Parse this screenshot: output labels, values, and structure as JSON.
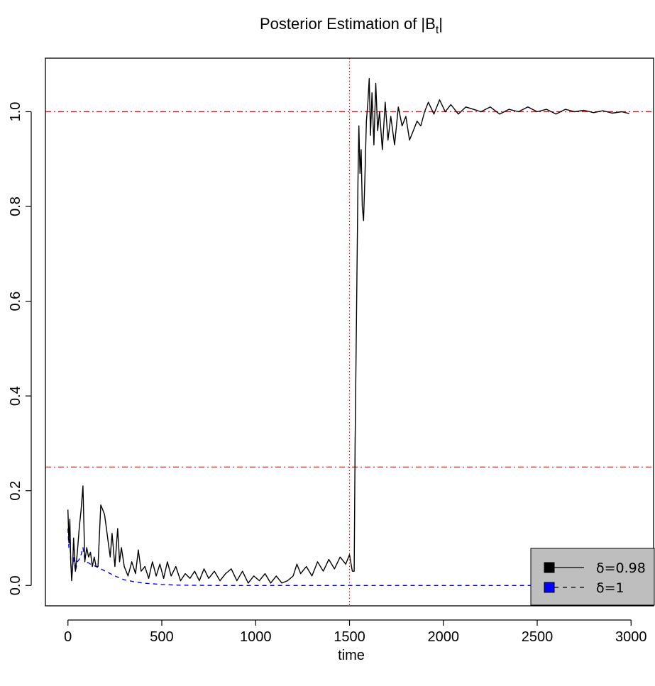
{
  "chart_data": {
    "type": "line",
    "title": {
      "main": "Posterior Estimation of |B",
      "sub": "t",
      "end": "|"
    },
    "xlabel": "time",
    "ylabel": "",
    "xlim": [
      -120,
      3120
    ],
    "ylim": [
      -0.043,
      1.113
    ],
    "xticks": [
      "0",
      "500",
      "1000",
      "1500",
      "2000",
      "2500",
      "3000"
    ],
    "yticks": [
      "0.0",
      "0.2",
      "0.4",
      "0.6",
      "0.8",
      "1.0"
    ],
    "reference_lines": {
      "horizontal": [
        1.0,
        0.25
      ],
      "horizontal_color": "#ff0000",
      "vertical": [
        1500
      ],
      "vertical_color": "#ff0000"
    },
    "legend_position": "bottom-right",
    "legend_background": "#bebebe",
    "series": [
      {
        "name": "δ=0.98",
        "color": "#000000",
        "dash": "solid",
        "x": [
          0,
          5,
          10,
          15,
          20,
          25,
          30,
          40,
          50,
          60,
          70,
          80,
          90,
          100,
          110,
          120,
          130,
          140,
          150,
          160,
          175,
          185,
          195,
          205,
          215,
          225,
          235,
          250,
          265,
          275,
          285,
          300,
          320,
          340,
          360,
          375,
          390,
          410,
          430,
          450,
          470,
          490,
          510,
          530,
          550,
          575,
          600,
          625,
          650,
          675,
          700,
          725,
          750,
          780,
          810,
          840,
          870,
          900,
          930,
          960,
          990,
          1020,
          1050,
          1080,
          1110,
          1140,
          1170,
          1200,
          1220,
          1240,
          1270,
          1300,
          1330,
          1360,
          1390,
          1420,
          1450,
          1480,
          1500,
          1515,
          1525,
          1530,
          1538,
          1545,
          1550,
          1556,
          1562,
          1568,
          1575,
          1582,
          1590,
          1598,
          1605,
          1612,
          1620,
          1630,
          1640,
          1650,
          1660,
          1675,
          1690,
          1705,
          1720,
          1740,
          1760,
          1780,
          1800,
          1820,
          1840,
          1860,
          1880,
          1900,
          1920,
          1950,
          1980,
          2010,
          2040,
          2080,
          2120,
          2160,
          2200,
          2250,
          2300,
          2350,
          2400,
          2450,
          2500,
          2550,
          2600,
          2650,
          2700,
          2750,
          2800,
          2850,
          2900,
          2950,
          2990
        ],
        "values": [
          0.16,
          0.09,
          0.14,
          0.05,
          0.01,
          0.04,
          0.1,
          0.03,
          0.07,
          0.12,
          0.16,
          0.21,
          0.05,
          0.08,
          0.06,
          0.07,
          0.04,
          0.06,
          0.04,
          0.04,
          0.17,
          0.16,
          0.15,
          0.12,
          0.09,
          0.06,
          0.11,
          0.04,
          0.12,
          0.05,
          0.08,
          0.04,
          0.02,
          0.05,
          0.025,
          0.075,
          0.03,
          0.04,
          0.015,
          0.05,
          0.02,
          0.045,
          0.015,
          0.05,
          0.02,
          0.04,
          0.01,
          0.025,
          0.015,
          0.03,
          0.01,
          0.035,
          0.015,
          0.03,
          0.01,
          0.025,
          0.035,
          0.01,
          0.03,
          0.005,
          0.02,
          0.01,
          0.025,
          0.005,
          0.02,
          0.005,
          0.01,
          0.02,
          0.045,
          0.025,
          0.04,
          0.02,
          0.05,
          0.03,
          0.055,
          0.035,
          0.06,
          0.045,
          0.065,
          0.03,
          0.03,
          0.3,
          0.6,
          0.85,
          0.97,
          0.87,
          0.92,
          0.8,
          0.77,
          0.86,
          0.98,
          1.02,
          1.07,
          0.95,
          1.04,
          0.93,
          1.06,
          0.96,
          1.0,
          0.92,
          1.02,
          0.94,
          0.99,
          0.93,
          1.01,
          0.97,
          0.99,
          0.94,
          0.96,
          0.98,
          0.97,
          1.0,
          1.02,
          0.995,
          1.025,
          1.0,
          1.015,
          0.995,
          1.01,
          1.005,
          1.0,
          1.01,
          0.995,
          1.005,
          1.0,
          1.01,
          1.0,
          1.005,
          0.995,
          1.005,
          1.0,
          1.003,
          0.998,
          1.002,
          0.997,
          1.0,
          0.996
        ]
      },
      {
        "name": "δ=1",
        "color": "#0000ff",
        "dash": "dashed",
        "x": [
          0,
          5,
          10,
          15,
          20,
          25,
          30,
          40,
          50,
          60,
          70,
          80,
          90,
          100,
          120,
          150,
          200,
          250,
          300,
          350,
          400,
          500,
          600,
          800,
          1000,
          1500,
          2000,
          2500,
          3000
        ],
        "values": [
          0.12,
          0.08,
          0.1,
          0.05,
          0.02,
          0.04,
          0.06,
          0.03,
          0.05,
          0.055,
          0.065,
          0.08,
          0.055,
          0.05,
          0.045,
          0.04,
          0.03,
          0.02,
          0.012,
          0.008,
          0.005,
          0.002,
          0.0005,
          0.0,
          0.0,
          0.0,
          0.0,
          0.0,
          0.0
        ]
      }
    ]
  }
}
